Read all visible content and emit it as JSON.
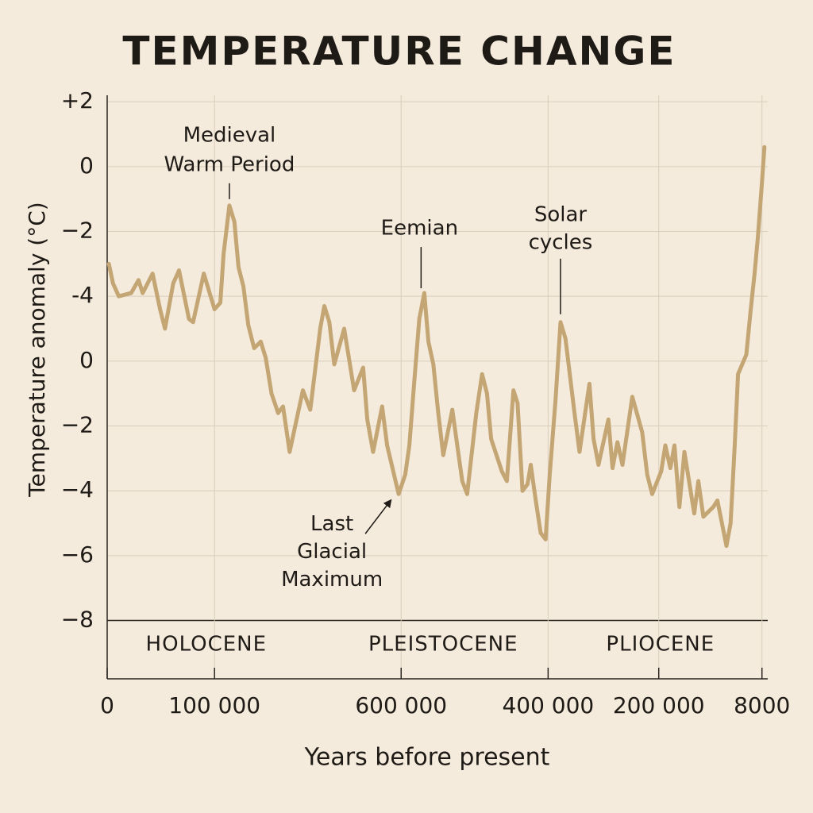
{
  "chart_data": {
    "type": "line",
    "title": "TEMPERATURE CHANGE",
    "y_label": "Temperature anomaly (°C)",
    "x_label": "Years before present",
    "color": "#c4a574",
    "grid": true,
    "xlim": [
      0,
      800000
    ],
    "ylim": [
      -15.8,
      2.2
    ],
    "xticks": [
      0,
      {
        "value": 130000,
        "label": "100 000"
      },
      {
        "value": 356000,
        "label": "600 000"
      },
      {
        "value": 534000,
        "label": "400 000"
      },
      {
        "value": 668000,
        "label": "200 000"
      },
      {
        "value": 793000,
        "label": "8000"
      }
    ],
    "yticks": [
      {
        "value": 2,
        "label": "+2"
      },
      0,
      {
        "value": -2,
        "label": "−2"
      },
      {
        "value": -4,
        "label": "-4"
      },
      {
        "value": -6,
        "label": "0"
      },
      {
        "value": -8,
        "label": "−2"
      },
      {
        "value": -10,
        "label": "−4"
      },
      {
        "value": -12,
        "label": "−6"
      },
      {
        "value": -14,
        "label": "−8"
      }
    ],
    "x": [
      2000,
      7000,
      14000,
      29000,
      38000,
      43000,
      55000,
      64000,
      70000,
      80000,
      87000,
      99000,
      104000,
      117000,
      130000,
      137000,
      141000,
      148000,
      154000,
      159000,
      165000,
      171000,
      178000,
      186000,
      192000,
      199000,
      207000,
      213000,
      221000,
      237000,
      246000,
      258000,
      263000,
      269000,
      275000,
      287000,
      299000,
      310000,
      315000,
      322000,
      333000,
      339000,
      353000,
      361000,
      366000,
      372000,
      378000,
      384000,
      389000,
      395000,
      401000,
      407000,
      418000,
      430000,
      436000,
      447000,
      454000,
      460000,
      465000,
      478000,
      484000,
      492000,
      497000,
      503000,
      509000,
      513000,
      519000,
      525000,
      531000,
      536000,
      543000,
      549000,
      555000,
      566000,
      572000,
      584000,
      589000,
      595000,
      607000,
      612000,
      618000,
      624000,
      636000,
      648000,
      654000,
      660000,
      671000,
      676000,
      682000,
      687000,
      693000,
      699000,
      711000,
      716000,
      722000,
      734000,
      739000,
      750000,
      755000,
      760000,
      764000,
      774000,
      779000,
      784000,
      788000,
      793000,
      796000
    ],
    "values": [
      -3.0,
      -3.6,
      -4.0,
      -3.9,
      -3.5,
      -3.9,
      -3.3,
      -4.4,
      -5.0,
      -3.6,
      -3.2,
      -4.7,
      -4.8,
      -3.3,
      -4.4,
      -4.2,
      -2.7,
      -1.2,
      -1.7,
      -3.1,
      -3.7,
      -4.9,
      -5.6,
      -5.4,
      -5.9,
      -7.0,
      -7.6,
      -7.4,
      -8.8,
      -6.9,
      -7.5,
      -5.0,
      -4.3,
      -4.8,
      -6.1,
      -5.0,
      -6.9,
      -6.2,
      -7.8,
      -8.8,
      -7.4,
      -8.6,
      -10.1,
      -9.5,
      -8.6,
      -6.6,
      -4.7,
      -3.9,
      -5.4,
      -6.1,
      -7.6,
      -8.9,
      -7.5,
      -9.7,
      -10.1,
      -7.6,
      -6.4,
      -7.0,
      -8.4,
      -9.4,
      -9.7,
      -6.9,
      -7.3,
      -10.0,
      -9.8,
      -9.2,
      -10.3,
      -11.3,
      -11.5,
      -9.5,
      -7.2,
      -4.8,
      -5.3,
      -7.6,
      -8.8,
      -6.7,
      -8.4,
      -9.2,
      -7.8,
      -9.3,
      -8.5,
      -9.2,
      -7.1,
      -8.2,
      -9.5,
      -10.1,
      -9.4,
      -8.6,
      -9.3,
      -8.6,
      -10.5,
      -8.8,
      -10.7,
      -9.7,
      -10.8,
      -10.5,
      -10.3,
      -11.7,
      -11.0,
      -8.6,
      -6.4,
      -5.8,
      -4.5,
      -3.3,
      -2.2,
      -0.5,
      0.6
    ],
    "annotations": [
      {
        "text": [
          "Medieval",
          "Warm Period"
        ],
        "x": 148000,
        "y": -1.2
      },
      {
        "text": [
          "Eemian"
        ],
        "x": 384000,
        "y": -3.9
      },
      {
        "text": [
          "Solar",
          "cycles"
        ],
        "x": 549000,
        "y": -4.8
      },
      {
        "text": [
          "Last",
          "Glacial",
          "Maximum"
        ],
        "x": 353000,
        "y": -10.1
      }
    ],
    "eras": [
      {
        "label": "HOLOCENE",
        "x": 120000
      },
      {
        "label": "PLEISTOCENE",
        "x": 407000
      },
      {
        "label": "PLIOCENE",
        "x": 670000
      }
    ]
  }
}
